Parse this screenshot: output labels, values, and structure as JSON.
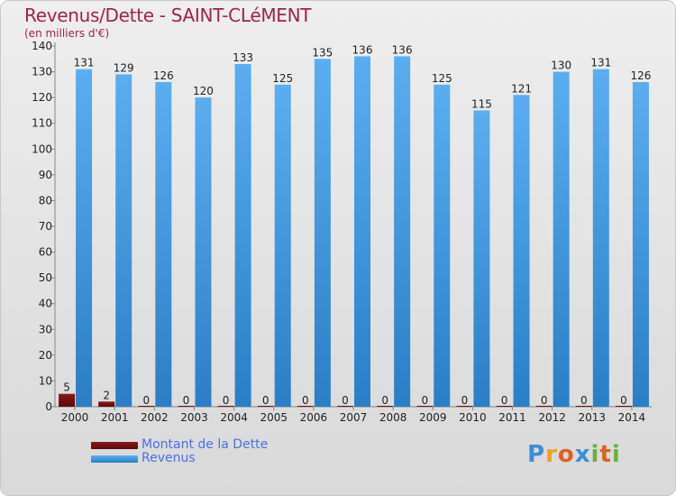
{
  "chart_data": {
    "type": "bar",
    "title": "Revenus/Dette - SAINT-CLéMENT",
    "subtitle": "(en milliers d'€)",
    "categories": [
      "2000",
      "2001",
      "2002",
      "2003",
      "2004",
      "2005",
      "2006",
      "2007",
      "2008",
      "2009",
      "2010",
      "2011",
      "2012",
      "2013",
      "2014"
    ],
    "series": [
      {
        "name": "Montant de la Dette",
        "color": "#7a1010",
        "values": [
          5,
          2,
          0,
          0,
          0,
          0,
          0,
          0,
          0,
          0,
          0,
          0,
          0,
          0,
          0
        ]
      },
      {
        "name": "Revenus",
        "color": "#4a9fe2",
        "values": [
          131,
          129,
          126,
          120,
          133,
          125,
          135,
          136,
          136,
          125,
          115,
          121,
          130,
          131,
          126
        ]
      }
    ],
    "ylim": [
      0,
      140
    ],
    "yticks": [
      0,
      10,
      20,
      30,
      40,
      50,
      60,
      70,
      80,
      90,
      100,
      110,
      120,
      130,
      140
    ],
    "grid": false,
    "legend_position": "bottom-left"
  },
  "logo": {
    "letters": [
      {
        "ch": "P",
        "color": "#3a8fd8"
      },
      {
        "ch": "r",
        "color": "#f0a020"
      },
      {
        "ch": "o",
        "color": "#e06020"
      },
      {
        "ch": "x",
        "color": "#3a8fd8"
      },
      {
        "ch": "i",
        "color": "#6ab040"
      },
      {
        "ch": "t",
        "color": "#e06020"
      },
      {
        "ch": "i",
        "color": "#6ab040"
      }
    ]
  }
}
